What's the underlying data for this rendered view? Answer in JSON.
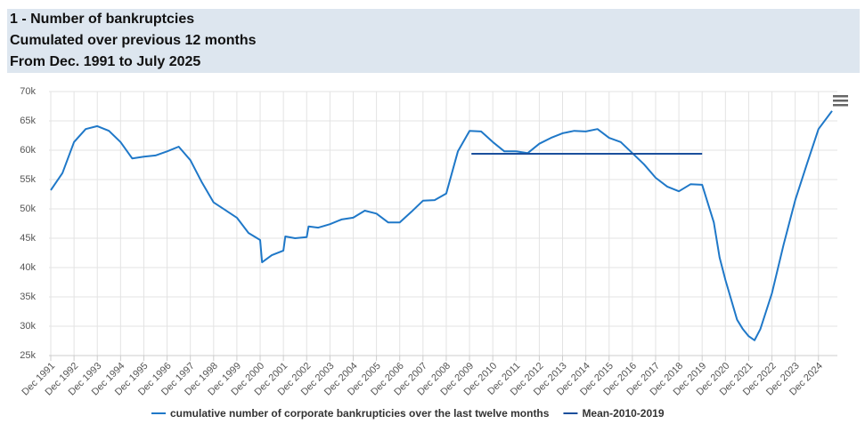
{
  "header": {
    "lines": [
      "1 - Number of bankruptcies",
      "Cumulated over previous 12 months",
      "From Dec. 1991 to July 2025"
    ]
  },
  "chart_data": {
    "type": "line",
    "xlim": [
      "Dec 1991",
      "Jul 2025"
    ],
    "xticks": [
      "Dec 1991",
      "Dec 1992",
      "Dec 1993",
      "Dec 1994",
      "Dec 1995",
      "Dec 1996",
      "Dec 1997",
      "Dec 1998",
      "Dec 1999",
      "Dec 2000",
      "Dec 2001",
      "Dec 2002",
      "Dec 2003",
      "Dec 2004",
      "Dec 2005",
      "Dec 2006",
      "Dec 2007",
      "Dec 2008",
      "Dec 2009",
      "Dec 2010",
      "Dec 2011",
      "Dec 2012",
      "Dec 2013",
      "Dec 2014",
      "Dec 2015",
      "Dec 2016",
      "Dec 2017",
      "Dec 2018",
      "Dec 2019",
      "Dec 2020",
      "Dec 2021",
      "Dec 2022",
      "Dec 2023",
      "Dec 2024"
    ],
    "ylim": [
      25000,
      70000
    ],
    "yticks": [
      {
        "value": 25000,
        "label": "25k"
      },
      {
        "value": 30000,
        "label": "30k"
      },
      {
        "value": 35000,
        "label": "35k"
      },
      {
        "value": 40000,
        "label": "40k"
      },
      {
        "value": 45000,
        "label": "45k"
      },
      {
        "value": 50000,
        "label": "50k"
      },
      {
        "value": 55000,
        "label": "55k"
      },
      {
        "value": 60000,
        "label": "60k"
      },
      {
        "value": 65000,
        "label": "65k"
      },
      {
        "value": 70000,
        "label": "70k"
      }
    ],
    "grid": true,
    "series": [
      {
        "name": "cumulative number of corporate bankrupticies over the last twelve months",
        "color": "#1f78c8",
        "x": [
          "Dec 1991",
          "Jun 1992",
          "Dec 1992",
          "Jun 1993",
          "Dec 1993",
          "Jun 1994",
          "Dec 1994",
          "Jun 1995",
          "Dec 1995",
          "Jun 1996",
          "Dec 1996",
          "Jun 1997",
          "Dec 1997",
          "Jun 1998",
          "Dec 1998",
          "Jun 1999",
          "Dec 1999",
          "Jun 2000",
          "Dec 2000",
          "Jan 2001",
          "Jun 2001",
          "Dec 2001",
          "Jan 2002",
          "Jun 2002",
          "Dec 2002",
          "Jan 2003",
          "Jun 2003",
          "Dec 2003",
          "Jun 2004",
          "Dec 2004",
          "Jun 2005",
          "Dec 2005",
          "Jun 2006",
          "Dec 2006",
          "Jun 2007",
          "Dec 2007",
          "Jun 2008",
          "Dec 2008",
          "Jun 2009",
          "Dec 2009",
          "Jun 2010",
          "Dec 2010",
          "Jun 2011",
          "Dec 2011",
          "Jun 2012",
          "Dec 2012",
          "Jun 2013",
          "Dec 2013",
          "Jun 2014",
          "Dec 2014",
          "Jun 2015",
          "Dec 2015",
          "Jun 2016",
          "Dec 2016",
          "Jun 2017",
          "Dec 2017",
          "Jun 2018",
          "Dec 2018",
          "Jun 2019",
          "Dec 2019",
          "Jun 2020",
          "Sep 2020",
          "Dec 2020",
          "Jun 2021",
          "Sep 2021",
          "Dec 2021",
          "Mar 2022",
          "Jun 2022",
          "Dec 2022",
          "Jun 2023",
          "Dec 2023",
          "Jun 2024",
          "Dec 2024",
          "Jul 2025"
        ],
        "values": [
          53200,
          56100,
          61400,
          63600,
          64100,
          63300,
          61400,
          58600,
          58900,
          59100,
          59800,
          60600,
          58300,
          54500,
          51100,
          49800,
          48500,
          45900,
          44700,
          40900,
          42100,
          42900,
          45300,
          45000,
          45200,
          47000,
          46800,
          47400,
          48200,
          48500,
          49700,
          49200,
          47700,
          47700,
          49500,
          51400,
          51500,
          52600,
          59800,
          63300,
          63200,
          61400,
          59800,
          59800,
          59500,
          61100,
          62100,
          62900,
          63300,
          63200,
          63600,
          62100,
          61400,
          59500,
          57600,
          55300,
          53800,
          53000,
          54200,
          54100,
          47700,
          41700,
          37900,
          31100,
          29500,
          28300,
          27600,
          29500,
          35600,
          43900,
          51500,
          57600,
          63600,
          66700
        ]
      },
      {
        "name": "Mean-2010-2019",
        "color": "#1b4f9c",
        "x": [
          "Jan 2010",
          "Dec 2019"
        ],
        "values": [
          59400,
          59400
        ]
      }
    ]
  }
}
